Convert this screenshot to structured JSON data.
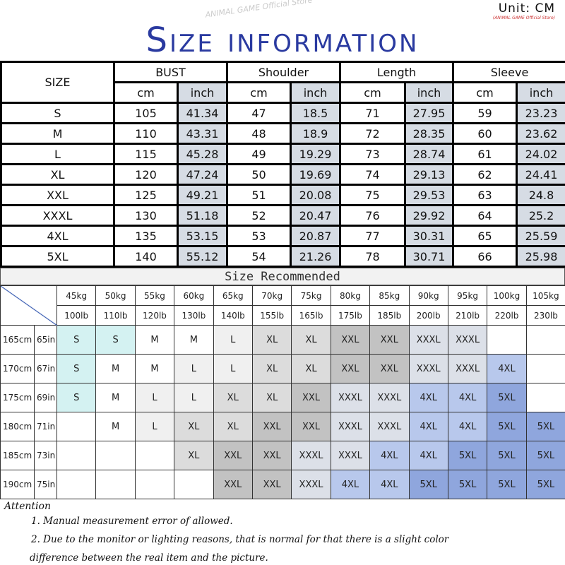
{
  "unit_label": "Unit: CM",
  "store_tag": "(ANIMAL GAME Official Store)",
  "watermark": "ANIMAL GAME Official Store",
  "title": "Size information",
  "size_table": {
    "size_header": "SIZE",
    "groups": [
      "BUST",
      "Shoulder",
      "Length",
      "Sleeve"
    ],
    "sub": [
      "cm",
      "inch"
    ],
    "rows": [
      [
        "S",
        "105",
        "41.34",
        "47",
        "18.5",
        "71",
        "27.95",
        "59",
        "23.23"
      ],
      [
        "M",
        "110",
        "43.31",
        "48",
        "18.9",
        "72",
        "28.35",
        "60",
        "23.62"
      ],
      [
        "L",
        "115",
        "45.28",
        "49",
        "19.29",
        "73",
        "28.74",
        "61",
        "24.02"
      ],
      [
        "XL",
        "120",
        "47.24",
        "50",
        "19.69",
        "74",
        "29.13",
        "62",
        "24.41"
      ],
      [
        "XXL",
        "125",
        "49.21",
        "51",
        "20.08",
        "75",
        "29.53",
        "63",
        "24.8"
      ],
      [
        "XXXL",
        "130",
        "51.18",
        "52",
        "20.47",
        "76",
        "29.92",
        "64",
        "25.2"
      ],
      [
        "4XL",
        "135",
        "53.15",
        "53",
        "20.87",
        "77",
        "30.31",
        "65",
        "25.59"
      ],
      [
        "5XL",
        "140",
        "55.12",
        "54",
        "21.26",
        "78",
        "30.71",
        "66",
        "25.98"
      ]
    ]
  },
  "recommend": {
    "title": "Size Recommended",
    "kg": [
      "45kg",
      "50kg",
      "55kg",
      "60kg",
      "65kg",
      "70kg",
      "75kg",
      "80kg",
      "85kg",
      "90kg",
      "95kg",
      "100kg",
      "105kg"
    ],
    "lb": [
      "100lb",
      "110lb",
      "120lb",
      "130lb",
      "140lb",
      "155lb",
      "165lb",
      "175lb",
      "185lb",
      "200lb",
      "210lb",
      "220lb",
      "230lb"
    ],
    "rows": [
      {
        "cm": "165cm",
        "in": "65in",
        "sizes": [
          "S",
          "S",
          "M",
          "M",
          "L",
          "XL",
          "XL",
          "XXL",
          "XXL",
          "XXXL",
          "XXXL",
          "",
          ""
        ]
      },
      {
        "cm": "170cm",
        "in": "67in",
        "sizes": [
          "S",
          "M",
          "M",
          "L",
          "L",
          "XL",
          "XL",
          "XXL",
          "XXL",
          "XXXL",
          "XXXL",
          "4XL",
          ""
        ]
      },
      {
        "cm": "175cm",
        "in": "69in",
        "sizes": [
          "S",
          "M",
          "L",
          "L",
          "XL",
          "XL",
          "XXL",
          "XXXL",
          "XXXL",
          "4XL",
          "4XL",
          "5XL",
          ""
        ]
      },
      {
        "cm": "180cm",
        "in": "71in",
        "sizes": [
          "",
          "M",
          "L",
          "XL",
          "XL",
          "XXL",
          "XXL",
          "XXXL",
          "XXXL",
          "4XL",
          "4XL",
          "5XL",
          "5XL"
        ]
      },
      {
        "cm": "185cm",
        "in": "73in",
        "sizes": [
          "",
          "",
          "",
          "XL",
          "XXL",
          "XXL",
          "XXXL",
          "XXXL",
          "4XL",
          "4XL",
          "5XL",
          "5XL",
          "5XL"
        ]
      },
      {
        "cm": "190cm",
        "in": "75in",
        "sizes": [
          "",
          "",
          "",
          "",
          "XXL",
          "XXL",
          "XXXL",
          "4XL",
          "4XL",
          "5XL",
          "5XL",
          "5XL",
          "5XL"
        ]
      }
    ],
    "colors": {
      "S": "#d4f2f2",
      "L": "#f0f0f0",
      "XL": "#dcdcdc",
      "XXL": "#c2c2c2",
      "XXXL": "#dce0e8",
      "4XL": "#b8c8ec",
      "5XL": "#8fa6dd",
      "M": "#ffffff",
      "": "#ffffff"
    }
  },
  "attention": {
    "title": "Attention",
    "notes": [
      "1. Manual measurement error of allowed.",
      "2.  Due to the monitor or lighting reasons, that is normal for that there is a slight color",
      "difference between the real item and the picture."
    ]
  }
}
